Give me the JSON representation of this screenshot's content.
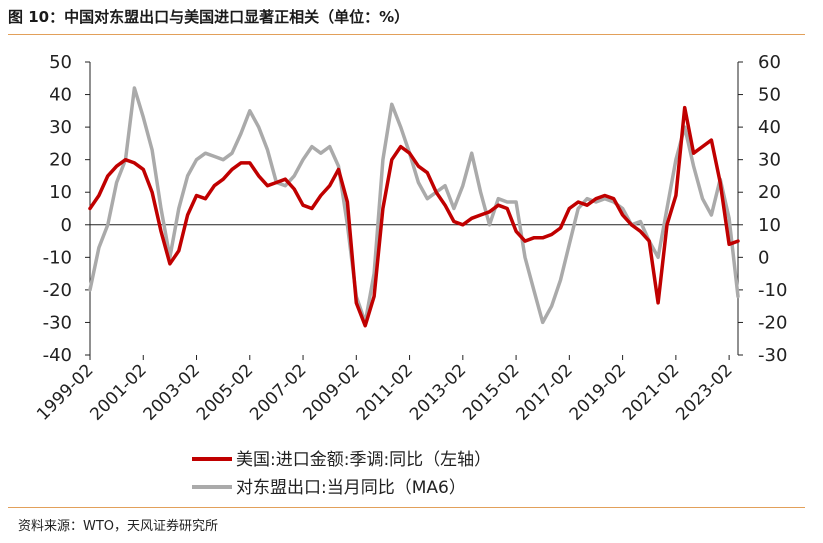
{
  "header": {
    "title": "图 10：中国对东盟出口与美国进口显著正相关（单位：%）"
  },
  "footer": {
    "source": "资料来源：WTO，天风证券研究所"
  },
  "colors": {
    "rule": "#e2a05a",
    "series_us_import": "#c00000",
    "series_china_asean": "#aaaaaa"
  },
  "chart_data": {
    "type": "line",
    "x_categories": [
      "1999-02",
      "2001-02",
      "2003-02",
      "2005-02",
      "2007-02",
      "2009-02",
      "2011-02",
      "2013-02",
      "2015-02",
      "2017-02",
      "2019-02",
      "2021-02",
      "2023-02"
    ],
    "y_left": {
      "ylim": [
        -40,
        50
      ],
      "ticks": [
        50,
        40,
        30,
        20,
        10,
        0,
        -10,
        -20,
        -30,
        -40
      ]
    },
    "y_right": {
      "ylim": [
        -30,
        60
      ],
      "ticks": [
        60,
        50,
        40,
        30,
        20,
        10,
        0,
        -10,
        -20,
        -30
      ]
    },
    "zero_line": true,
    "legend": {
      "placement": "bottom-center"
    },
    "series": [
      {
        "name": "美国:进口金额:季调:同比（左轴）",
        "axis": "left",
        "color": "#c00000",
        "points": [
          [
            "1999-02",
            5
          ],
          [
            "1999-06",
            9
          ],
          [
            "1999-10",
            15
          ],
          [
            "2000-02",
            18
          ],
          [
            "2000-06",
            20
          ],
          [
            "2000-10",
            19
          ],
          [
            "2001-02",
            17
          ],
          [
            "2001-06",
            10
          ],
          [
            "2001-10",
            -2
          ],
          [
            "2002-02",
            -12
          ],
          [
            "2002-06",
            -8
          ],
          [
            "2002-10",
            3
          ],
          [
            "2003-02",
            9
          ],
          [
            "2003-06",
            8
          ],
          [
            "2003-10",
            12
          ],
          [
            "2004-02",
            14
          ],
          [
            "2004-06",
            17
          ],
          [
            "2004-10",
            19
          ],
          [
            "2005-02",
            19
          ],
          [
            "2005-06",
            15
          ],
          [
            "2005-10",
            12
          ],
          [
            "2006-02",
            13
          ],
          [
            "2006-06",
            14
          ],
          [
            "2006-10",
            11
          ],
          [
            "2007-02",
            6
          ],
          [
            "2007-06",
            5
          ],
          [
            "2007-10",
            9
          ],
          [
            "2008-02",
            12
          ],
          [
            "2008-06",
            17
          ],
          [
            "2008-10",
            7
          ],
          [
            "2009-02",
            -24
          ],
          [
            "2009-06",
            -31
          ],
          [
            "2009-10",
            -22
          ],
          [
            "2010-02",
            5
          ],
          [
            "2010-06",
            20
          ],
          [
            "2010-10",
            24
          ],
          [
            "2011-02",
            22
          ],
          [
            "2011-06",
            18
          ],
          [
            "2011-10",
            16
          ],
          [
            "2012-02",
            10
          ],
          [
            "2012-06",
            6
          ],
          [
            "2012-10",
            1
          ],
          [
            "2013-02",
            0
          ],
          [
            "2013-06",
            2
          ],
          [
            "2013-10",
            3
          ],
          [
            "2014-02",
            4
          ],
          [
            "2014-06",
            6
          ],
          [
            "2014-10",
            5
          ],
          [
            "2015-02",
            -2
          ],
          [
            "2015-06",
            -5
          ],
          [
            "2015-10",
            -4
          ],
          [
            "2016-02",
            -4
          ],
          [
            "2016-06",
            -3
          ],
          [
            "2016-10",
            -1
          ],
          [
            "2017-02",
            5
          ],
          [
            "2017-06",
            7
          ],
          [
            "2017-10",
            6
          ],
          [
            "2018-02",
            8
          ],
          [
            "2018-06",
            9
          ],
          [
            "2018-10",
            8
          ],
          [
            "2019-02",
            3
          ],
          [
            "2019-06",
            0
          ],
          [
            "2019-10",
            -2
          ],
          [
            "2020-02",
            -5
          ],
          [
            "2020-06",
            -24
          ],
          [
            "2020-10",
            0
          ],
          [
            "2021-02",
            9
          ],
          [
            "2021-06",
            36
          ],
          [
            "2021-10",
            22
          ],
          [
            "2022-02",
            24
          ],
          [
            "2022-06",
            26
          ],
          [
            "2022-10",
            13
          ],
          [
            "2023-02",
            -6
          ],
          [
            "2023-06",
            -5
          ]
        ]
      },
      {
        "name": "对东盟出口:当月同比（MA6）",
        "axis": "right",
        "color": "#aaaaaa",
        "points": [
          [
            "1999-02",
            -10
          ],
          [
            "1999-06",
            3
          ],
          [
            "1999-10",
            10
          ],
          [
            "2000-02",
            23
          ],
          [
            "2000-06",
            30
          ],
          [
            "2000-10",
            52
          ],
          [
            "2001-02",
            43
          ],
          [
            "2001-06",
            33
          ],
          [
            "2001-10",
            15
          ],
          [
            "2002-02",
            0
          ],
          [
            "2002-06",
            15
          ],
          [
            "2002-10",
            25
          ],
          [
            "2003-02",
            30
          ],
          [
            "2003-06",
            32
          ],
          [
            "2003-10",
            31
          ],
          [
            "2004-02",
            30
          ],
          [
            "2004-06",
            32
          ],
          [
            "2004-10",
            38
          ],
          [
            "2005-02",
            45
          ],
          [
            "2005-06",
            40
          ],
          [
            "2005-10",
            33
          ],
          [
            "2006-02",
            23
          ],
          [
            "2006-06",
            22
          ],
          [
            "2006-10",
            25
          ],
          [
            "2007-02",
            30
          ],
          [
            "2007-06",
            34
          ],
          [
            "2007-10",
            32
          ],
          [
            "2008-02",
            34
          ],
          [
            "2008-06",
            28
          ],
          [
            "2008-10",
            10
          ],
          [
            "2009-02",
            -12
          ],
          [
            "2009-06",
            -20
          ],
          [
            "2009-10",
            -5
          ],
          [
            "2010-02",
            30
          ],
          [
            "2010-06",
            47
          ],
          [
            "2010-10",
            40
          ],
          [
            "2011-02",
            32
          ],
          [
            "2011-06",
            23
          ],
          [
            "2011-10",
            18
          ],
          [
            "2012-02",
            20
          ],
          [
            "2012-06",
            22
          ],
          [
            "2012-10",
            15
          ],
          [
            "2013-02",
            22
          ],
          [
            "2013-06",
            32
          ],
          [
            "2013-10",
            20
          ],
          [
            "2014-02",
            10
          ],
          [
            "2014-06",
            18
          ],
          [
            "2014-10",
            17
          ],
          [
            "2015-02",
            17
          ],
          [
            "2015-06",
            0
          ],
          [
            "2015-10",
            -10
          ],
          [
            "2016-02",
            -20
          ],
          [
            "2016-06",
            -15
          ],
          [
            "2016-10",
            -7
          ],
          [
            "2017-02",
            4
          ],
          [
            "2017-06",
            15
          ],
          [
            "2017-10",
            18
          ],
          [
            "2018-02",
            17
          ],
          [
            "2018-06",
            18
          ],
          [
            "2018-10",
            17
          ],
          [
            "2019-02",
            15
          ],
          [
            "2019-06",
            10
          ],
          [
            "2019-10",
            11
          ],
          [
            "2020-02",
            5
          ],
          [
            "2020-06",
            0
          ],
          [
            "2020-10",
            15
          ],
          [
            "2021-02",
            30
          ],
          [
            "2021-06",
            40
          ],
          [
            "2021-10",
            28
          ],
          [
            "2022-02",
            18
          ],
          [
            "2022-06",
            13
          ],
          [
            "2022-10",
            24
          ],
          [
            "2023-02",
            12
          ],
          [
            "2023-06",
            -12
          ]
        ]
      }
    ]
  }
}
